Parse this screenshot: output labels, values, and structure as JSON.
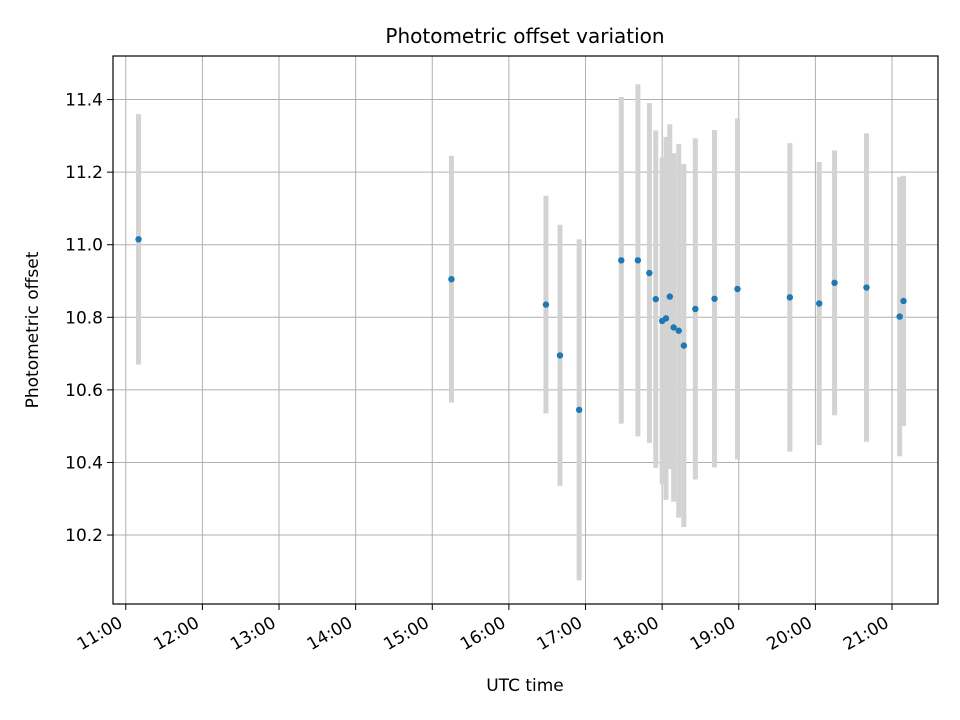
{
  "chart_data": {
    "type": "scatter",
    "title": "Photometric offset variation",
    "xlabel": "UTC time",
    "ylabel": "Photometric offset",
    "x_unit": "UTC time of day (HH:MM)",
    "xlim": [
      "10:50",
      "21:36"
    ],
    "ylim": [
      10.01,
      11.52
    ],
    "x_ticks": [
      "11:00",
      "12:00",
      "13:00",
      "14:00",
      "15:00",
      "16:00",
      "17:00",
      "18:00",
      "19:00",
      "20:00",
      "21:00"
    ],
    "y_ticks": [
      10.2,
      10.4,
      10.6,
      10.8,
      11.0,
      11.2,
      11.4
    ],
    "grid": true,
    "legend": "none",
    "colors": {
      "points": "#1f77b4",
      "error_bars": "#d3d3d3",
      "grid": "#b0b0b0"
    },
    "series": [
      {
        "points": [
          {
            "x": "11:10",
            "y": 11.015,
            "err": 0.345
          },
          {
            "x": "15:15",
            "y": 10.905,
            "err": 0.34
          },
          {
            "x": "16:29",
            "y": 10.835,
            "err": 0.3
          },
          {
            "x": "16:40",
            "y": 10.695,
            "err": 0.36
          },
          {
            "x": "16:55",
            "y": 10.545,
            "err": 0.47
          },
          {
            "x": "17:28",
            "y": 10.957,
            "err": 0.45
          },
          {
            "x": "17:41",
            "y": 10.957,
            "err": 0.485
          },
          {
            "x": "17:50",
            "y": 10.922,
            "err": 0.468
          },
          {
            "x": "17:55",
            "y": 10.85,
            "err": 0.465
          },
          {
            "x": "18:00",
            "y": 10.79,
            "err": 0.45
          },
          {
            "x": "18:03",
            "y": 10.797,
            "err": 0.5
          },
          {
            "x": "18:06",
            "y": 10.857,
            "err": 0.475
          },
          {
            "x": "18:09",
            "y": 10.772,
            "err": 0.48
          },
          {
            "x": "18:13",
            "y": 10.763,
            "err": 0.515
          },
          {
            "x": "18:17",
            "y": 10.722,
            "err": 0.5
          },
          {
            "x": "18:26",
            "y": 10.823,
            "err": 0.47
          },
          {
            "x": "18:41",
            "y": 10.851,
            "err": 0.465
          },
          {
            "x": "18:59",
            "y": 10.878,
            "err": 0.47
          },
          {
            "x": "19:40",
            "y": 10.855,
            "err": 0.425
          },
          {
            "x": "20:03",
            "y": 10.838,
            "err": 0.39
          },
          {
            "x": "20:15",
            "y": 10.895,
            "err": 0.365
          },
          {
            "x": "20:40",
            "y": 10.882,
            "err": 0.425
          },
          {
            "x": "21:06",
            "y": 10.802,
            "err": 0.385
          },
          {
            "x": "21:09",
            "y": 10.845,
            "err": 0.345
          }
        ]
      }
    ]
  }
}
